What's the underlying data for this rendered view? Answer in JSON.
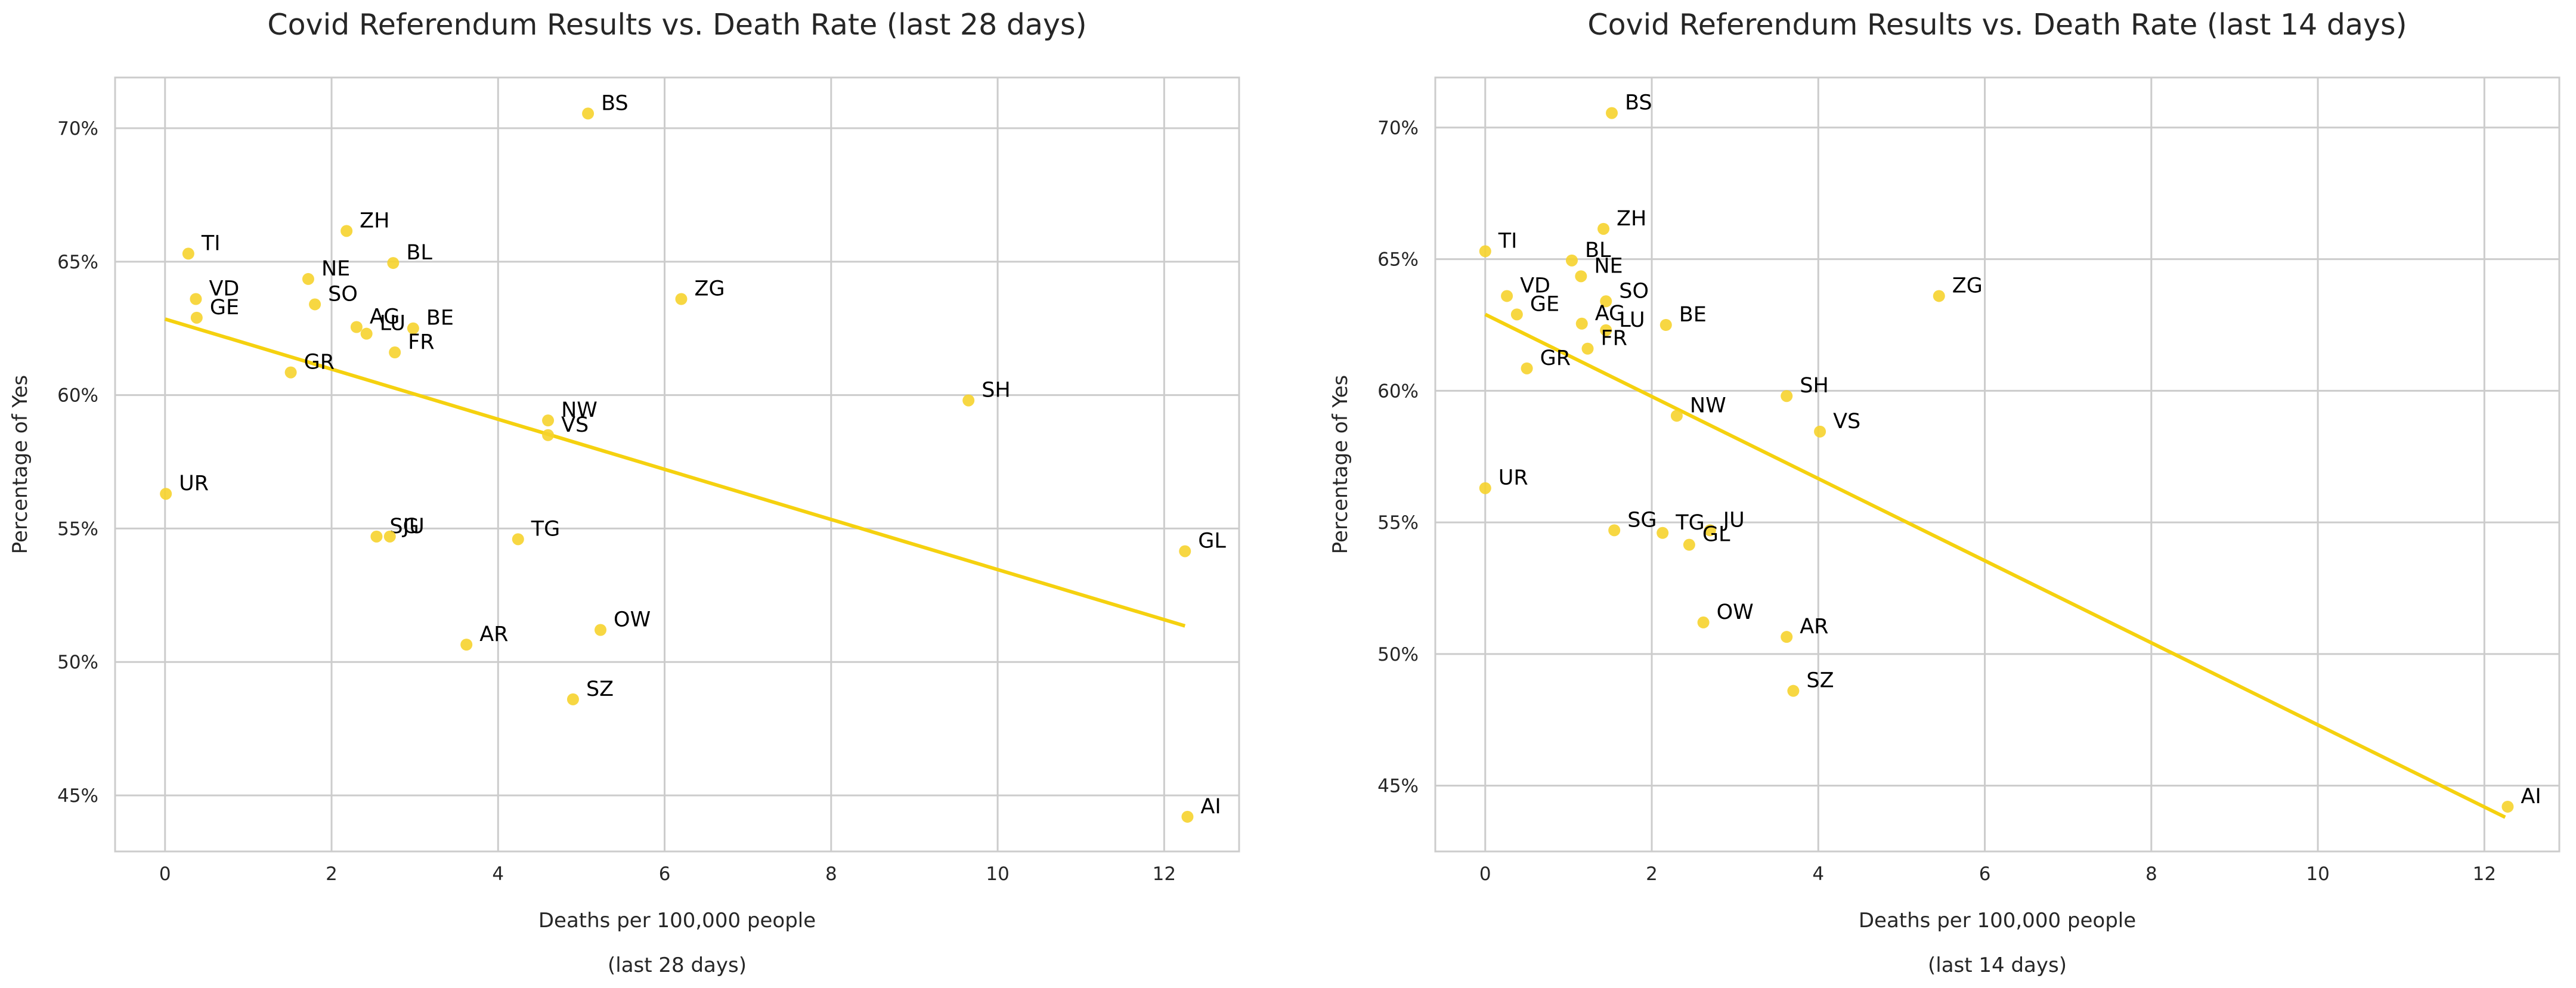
{
  "colors": {
    "point": "#f6d32d",
    "line": "#f5d10f",
    "grid": "#cccccc",
    "text": "#262626"
  },
  "chart_data": [
    {
      "type": "scatter",
      "title": "Covid Referendum Results vs. Death Rate (last 28 days)",
      "xlabel": "Deaths per 100,000 people",
      "xlabel_sub": "(last 28 days)",
      "ylabel": "Percentage of Yes",
      "xlim": [
        -0.6,
        12.9
      ],
      "ylim": [
        42.9,
        71.9
      ],
      "xticks": [
        0,
        2,
        4,
        6,
        8,
        10,
        12
      ],
      "yticks": [
        45,
        50,
        55,
        60,
        65,
        70
      ],
      "ytick_suffix": "%",
      "grid": true,
      "regression": {
        "x": [
          0,
          12.25
        ],
        "y": [
          62.85,
          51.35
        ]
      },
      "points": [
        {
          "label": "BS",
          "x": 5.08,
          "y": 70.55
        },
        {
          "label": "ZH",
          "x": 2.18,
          "y": 66.15
        },
        {
          "label": "TI",
          "x": 0.28,
          "y": 65.3
        },
        {
          "label": "BL",
          "x": 2.74,
          "y": 64.95
        },
        {
          "label": "NE",
          "x": 1.72,
          "y": 64.35
        },
        {
          "label": "VD",
          "x": 0.37,
          "y": 63.6
        },
        {
          "label": "ZG",
          "x": 6.2,
          "y": 63.6
        },
        {
          "label": "SO",
          "x": 1.8,
          "y": 63.4
        },
        {
          "label": "GE",
          "x": 0.38,
          "y": 62.9
        },
        {
          "label": "AG",
          "x": 2.3,
          "y": 62.55
        },
        {
          "label": "LU",
          "x": 2.42,
          "y": 62.3
        },
        {
          "label": "BE",
          "x": 2.98,
          "y": 62.5
        },
        {
          "label": "FR",
          "x": 2.76,
          "y": 61.6
        },
        {
          "label": "GR",
          "x": 1.51,
          "y": 60.85
        },
        {
          "label": "SH",
          "x": 9.65,
          "y": 59.8
        },
        {
          "label": "NW",
          "x": 4.6,
          "y": 59.05
        },
        {
          "label": "VS",
          "x": 4.6,
          "y": 58.5
        },
        {
          "label": "UR",
          "x": 0.01,
          "y": 56.3
        },
        {
          "label": "SG",
          "x": 2.54,
          "y": 54.7
        },
        {
          "label": "JU",
          "x": 2.7,
          "y": 54.7
        },
        {
          "label": "TG",
          "x": 4.24,
          "y": 54.6
        },
        {
          "label": "GL",
          "x": 12.25,
          "y": 54.15
        },
        {
          "label": "OW",
          "x": 5.23,
          "y": 51.2
        },
        {
          "label": "AR",
          "x": 3.62,
          "y": 50.65
        },
        {
          "label": "SZ",
          "x": 4.9,
          "y": 48.6
        },
        {
          "label": "AI",
          "x": 12.28,
          "y": 44.2
        }
      ]
    },
    {
      "type": "scatter",
      "title": "Covid Referendum Results vs. Death Rate (last 14 days)",
      "xlabel": "Deaths per 100,000 people",
      "xlabel_sub": "(last 14 days)",
      "ylabel": "Percentage of Yes",
      "xlim": [
        -0.6,
        12.9
      ],
      "ylim": [
        42.5,
        71.9
      ],
      "xticks": [
        0,
        2,
        4,
        6,
        8,
        10,
        12
      ],
      "yticks": [
        45,
        50,
        55,
        60,
        65,
        70
      ],
      "ytick_suffix": "%",
      "grid": true,
      "regression": {
        "x": [
          0,
          12.25
        ],
        "y": [
          62.9,
          43.8
        ]
      },
      "points": [
        {
          "label": "BS",
          "x": 1.52,
          "y": 70.55
        },
        {
          "label": "ZH",
          "x": 1.42,
          "y": 66.15
        },
        {
          "label": "TI",
          "x": 0.0,
          "y": 65.3
        },
        {
          "label": "BL",
          "x": 1.04,
          "y": 64.95
        },
        {
          "label": "NE",
          "x": 1.15,
          "y": 64.35
        },
        {
          "label": "VD",
          "x": 0.26,
          "y": 63.6
        },
        {
          "label": "ZG",
          "x": 5.45,
          "y": 63.6
        },
        {
          "label": "SO",
          "x": 1.45,
          "y": 63.4
        },
        {
          "label": "GE",
          "x": 0.38,
          "y": 62.9
        },
        {
          "label": "AG",
          "x": 1.16,
          "y": 62.55
        },
        {
          "label": "LU",
          "x": 1.45,
          "y": 62.3
        },
        {
          "label": "BE",
          "x": 2.17,
          "y": 62.5
        },
        {
          "label": "FR",
          "x": 1.23,
          "y": 61.6
        },
        {
          "label": "GR",
          "x": 0.5,
          "y": 60.85
        },
        {
          "label": "SH",
          "x": 3.62,
          "y": 59.8
        },
        {
          "label": "NW",
          "x": 2.3,
          "y": 59.05
        },
        {
          "label": "VS",
          "x": 4.02,
          "y": 58.45
        },
        {
          "label": "UR",
          "x": 0.0,
          "y": 56.3
        },
        {
          "label": "SG",
          "x": 1.55,
          "y": 54.7
        },
        {
          "label": "TG",
          "x": 2.13,
          "y": 54.6
        },
        {
          "label": "JU",
          "x": 2.7,
          "y": 54.7
        },
        {
          "label": "GL",
          "x": 2.45,
          "y": 54.15
        },
        {
          "label": "OW",
          "x": 2.62,
          "y": 51.2
        },
        {
          "label": "AR",
          "x": 3.62,
          "y": 50.65
        },
        {
          "label": "SZ",
          "x": 3.7,
          "y": 48.6
        },
        {
          "label": "AI",
          "x": 12.28,
          "y": 44.2
        }
      ]
    }
  ]
}
